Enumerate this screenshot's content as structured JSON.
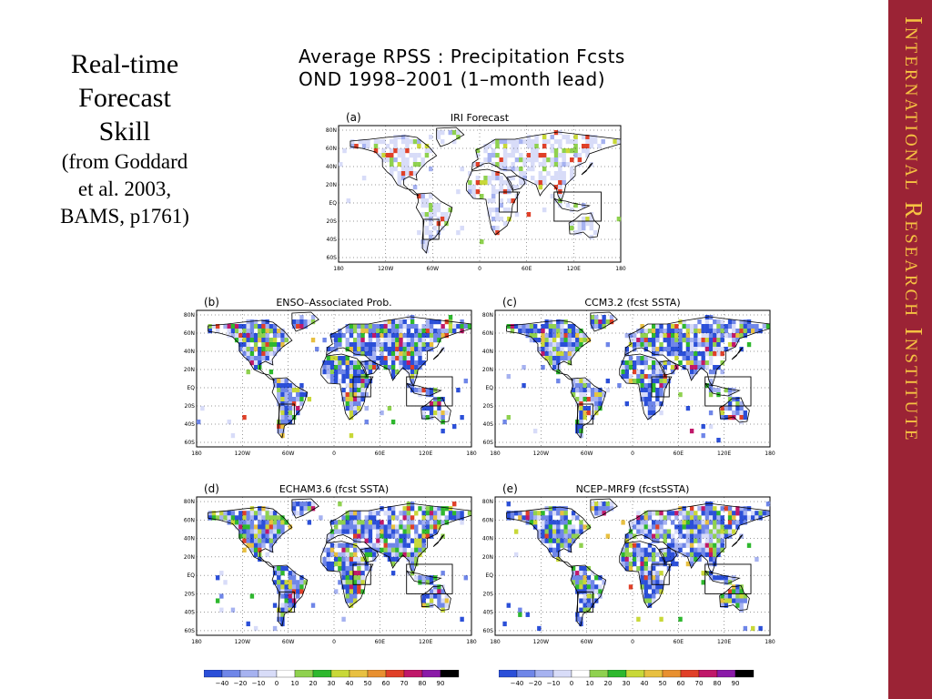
{
  "slide": {
    "title_lines": [
      "Real-time",
      "Forecast",
      "Skill"
    ],
    "citation_lines": [
      "(from Goddard",
      "et al. 2003,",
      "BAMS, p1761)"
    ],
    "brand": "International Research Institute",
    "brand_color": "#9b2335",
    "brand_text_color": "#f5c242"
  },
  "figure": {
    "title_line1": "Average RPSS : Precipitation Fcsts",
    "title_line2": "OND 1998–2001   (1–month lead)"
  },
  "panels": [
    {
      "id": "a",
      "label": "(a)",
      "name": "IRI Forecast",
      "lat_labels": [
        "80N",
        "60N",
        "40N",
        "20N",
        "EQ",
        "20S",
        "40S",
        "60S"
      ],
      "lon_labels": [
        "180",
        "120W",
        "60W",
        "0",
        "60E",
        "120E",
        "180"
      ]
    },
    {
      "id": "b",
      "label": "(b)",
      "name": "ENSO–Associated Prob.",
      "lat_labels": [
        "80N",
        "60N",
        "40N",
        "20N",
        "EQ",
        "20S",
        "40S",
        "60S"
      ],
      "lon_labels": [
        "180",
        "120W",
        "60W",
        "0",
        "60E",
        "120E",
        "180"
      ]
    },
    {
      "id": "c",
      "label": "(c)",
      "name": "CCM3.2  (fcst SSTA)",
      "lat_labels": [
        "80N",
        "60N",
        "40N",
        "20N",
        "EQ",
        "20S",
        "40S",
        "60S"
      ],
      "lon_labels": [
        "180",
        "120W",
        "60W",
        "0",
        "60E",
        "120E",
        "180"
      ]
    },
    {
      "id": "d",
      "label": "(d)",
      "name": "ECHAM3.6  (fcst SSTA)",
      "lat_labels": [
        "80N",
        "60N",
        "40N",
        "20N",
        "EQ",
        "20S",
        "40S",
        "60S"
      ],
      "lon_labels": [
        "180",
        "120W",
        "60W",
        "0",
        "60E",
        "120E",
        "180"
      ]
    },
    {
      "id": "e",
      "label": "(e)",
      "name": "NCEP–MRF9  (fcstSSTA)",
      "lat_labels": [
        "80N",
        "60N",
        "40N",
        "20N",
        "EQ",
        "20S",
        "40S",
        "60S"
      ],
      "lon_labels": [
        "180",
        "120W",
        "60W",
        "0",
        "60E",
        "120E",
        "180"
      ]
    }
  ],
  "colorbar": {
    "labels": [
      "−40",
      "−20",
      "−10",
      "0",
      "10",
      "20",
      "30",
      "40",
      "50",
      "60",
      "70",
      "80",
      "90"
    ],
    "colors": [
      "#2b4fd8",
      "#6f86e8",
      "#a6b2f0",
      "#d8dcf8",
      "#ffffff",
      "#8fd14f",
      "#2eb82e",
      "#c8d838",
      "#e8c040",
      "#e89030",
      "#e04028",
      "#c0186a",
      "#8a1aa8",
      "#000000"
    ]
  }
}
